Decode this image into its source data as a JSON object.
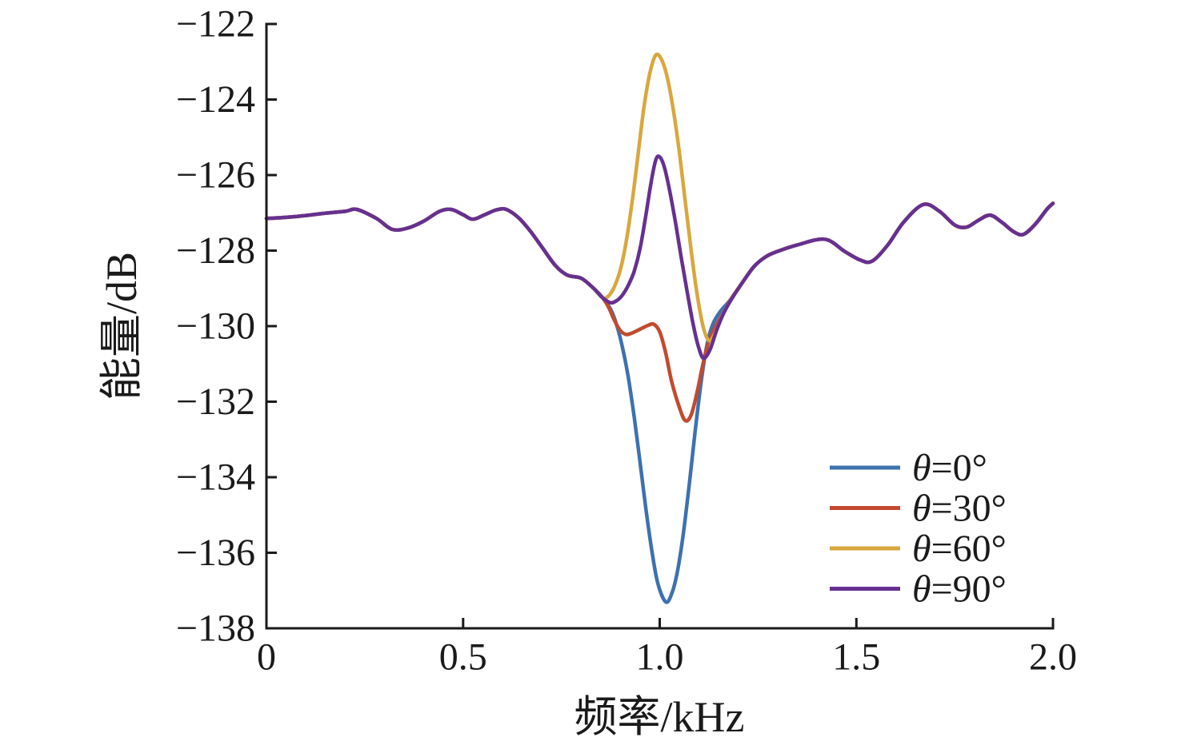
{
  "figure": {
    "background": "#ffffff",
    "axis_color": "#1a1a1a",
    "text_color": "#1a1a1a"
  },
  "chart_data": {
    "type": "line",
    "title": "",
    "xlabel": "频率/kHz",
    "ylabel": "能量/dB",
    "xlim": [
      0,
      2
    ],
    "ylim": [
      -138,
      -122
    ],
    "grid": false,
    "legend_position": "inside lower right",
    "xticks": [
      0,
      0.5,
      1.0,
      1.5,
      2.0
    ],
    "xtick_labels": [
      "0",
      "0.5",
      "1.0",
      "1.5",
      "2.0"
    ],
    "yticks": [
      -138,
      -136,
      -134,
      -132,
      -130,
      -128,
      -126,
      -124,
      -122
    ],
    "ytick_labels": [
      "−138",
      "−136",
      "−134",
      "−132",
      "−130",
      "−128",
      "−126",
      "−124",
      "−122"
    ],
    "series": [
      {
        "name": "θ=0°",
        "color": "#3D71B0",
        "points": [
          [
            0.0,
            -127.15
          ],
          [
            0.05,
            -127.12
          ],
          [
            0.1,
            -127.07
          ],
          [
            0.15,
            -127.01
          ],
          [
            0.2,
            -126.96
          ],
          [
            0.23,
            -126.91
          ],
          [
            0.28,
            -127.15
          ],
          [
            0.32,
            -127.44
          ],
          [
            0.36,
            -127.4
          ],
          [
            0.4,
            -127.22
          ],
          [
            0.44,
            -126.96
          ],
          [
            0.47,
            -126.91
          ],
          [
            0.5,
            -127.05
          ],
          [
            0.525,
            -127.17
          ],
          [
            0.555,
            -127.05
          ],
          [
            0.585,
            -126.92
          ],
          [
            0.61,
            -126.91
          ],
          [
            0.64,
            -127.12
          ],
          [
            0.67,
            -127.47
          ],
          [
            0.7,
            -127.9
          ],
          [
            0.735,
            -128.4
          ],
          [
            0.765,
            -128.65
          ],
          [
            0.8,
            -128.73
          ],
          [
            0.83,
            -128.98
          ],
          [
            0.855,
            -129.25
          ],
          [
            0.875,
            -129.55
          ],
          [
            0.89,
            -129.95
          ],
          [
            0.905,
            -130.55
          ],
          [
            0.92,
            -131.35
          ],
          [
            0.935,
            -132.4
          ],
          [
            0.95,
            -133.6
          ],
          [
            0.965,
            -134.85
          ],
          [
            0.98,
            -135.95
          ],
          [
            0.995,
            -136.8
          ],
          [
            1.015,
            -137.3
          ],
          [
            1.03,
            -137.1
          ],
          [
            1.045,
            -136.5
          ],
          [
            1.06,
            -135.5
          ],
          [
            1.075,
            -134.2
          ],
          [
            1.09,
            -132.8
          ],
          [
            1.105,
            -131.5
          ],
          [
            1.12,
            -130.5
          ],
          [
            1.135,
            -129.95
          ],
          [
            1.155,
            -129.6
          ],
          [
            1.18,
            -129.3
          ],
          [
            1.21,
            -128.85
          ],
          [
            1.24,
            -128.42
          ],
          [
            1.27,
            -128.16
          ],
          [
            1.3,
            -128.02
          ],
          [
            1.35,
            -127.85
          ],
          [
            1.42,
            -127.7
          ],
          [
            1.47,
            -128.02
          ],
          [
            1.51,
            -128.25
          ],
          [
            1.54,
            -128.28
          ],
          [
            1.58,
            -127.85
          ],
          [
            1.62,
            -127.25
          ],
          [
            1.67,
            -126.78
          ],
          [
            1.71,
            -126.95
          ],
          [
            1.75,
            -127.32
          ],
          [
            1.78,
            -127.38
          ],
          [
            1.81,
            -127.2
          ],
          [
            1.84,
            -127.06
          ],
          [
            1.87,
            -127.25
          ],
          [
            1.9,
            -127.5
          ],
          [
            1.925,
            -127.57
          ],
          [
            1.955,
            -127.3
          ],
          [
            1.985,
            -126.9
          ],
          [
            2.0,
            -126.75
          ]
        ]
      },
      {
        "name": "θ=30°",
        "color": "#C24A2E",
        "points": [
          [
            0.0,
            -127.15
          ],
          [
            0.05,
            -127.12
          ],
          [
            0.1,
            -127.07
          ],
          [
            0.15,
            -127.01
          ],
          [
            0.2,
            -126.96
          ],
          [
            0.23,
            -126.91
          ],
          [
            0.28,
            -127.15
          ],
          [
            0.32,
            -127.44
          ],
          [
            0.36,
            -127.4
          ],
          [
            0.4,
            -127.22
          ],
          [
            0.44,
            -126.96
          ],
          [
            0.47,
            -126.91
          ],
          [
            0.5,
            -127.05
          ],
          [
            0.525,
            -127.17
          ],
          [
            0.555,
            -127.05
          ],
          [
            0.585,
            -126.92
          ],
          [
            0.61,
            -126.91
          ],
          [
            0.64,
            -127.12
          ],
          [
            0.67,
            -127.47
          ],
          [
            0.7,
            -127.9
          ],
          [
            0.735,
            -128.4
          ],
          [
            0.765,
            -128.65
          ],
          [
            0.8,
            -128.73
          ],
          [
            0.83,
            -128.98
          ],
          [
            0.855,
            -129.25
          ],
          [
            0.87,
            -129.5
          ],
          [
            0.885,
            -129.85
          ],
          [
            0.9,
            -130.12
          ],
          [
            0.915,
            -130.22
          ],
          [
            0.93,
            -130.18
          ],
          [
            0.95,
            -130.08
          ],
          [
            0.97,
            -129.98
          ],
          [
            0.985,
            -129.95
          ],
          [
            1.0,
            -130.15
          ],
          [
            1.015,
            -130.7
          ],
          [
            1.03,
            -131.45
          ],
          [
            1.05,
            -132.15
          ],
          [
            1.065,
            -132.5
          ],
          [
            1.08,
            -132.35
          ],
          [
            1.095,
            -131.75
          ],
          [
            1.11,
            -131.0
          ],
          [
            1.125,
            -130.4
          ],
          [
            1.145,
            -129.95
          ],
          [
            1.165,
            -129.6
          ],
          [
            1.18,
            -129.3
          ],
          [
            1.21,
            -128.85
          ],
          [
            1.24,
            -128.42
          ],
          [
            1.27,
            -128.16
          ],
          [
            1.3,
            -128.02
          ],
          [
            1.35,
            -127.85
          ],
          [
            1.42,
            -127.7
          ],
          [
            1.47,
            -128.02
          ],
          [
            1.51,
            -128.25
          ],
          [
            1.54,
            -128.28
          ],
          [
            1.58,
            -127.85
          ],
          [
            1.62,
            -127.25
          ],
          [
            1.67,
            -126.78
          ],
          [
            1.71,
            -126.95
          ],
          [
            1.75,
            -127.32
          ],
          [
            1.78,
            -127.38
          ],
          [
            1.81,
            -127.2
          ],
          [
            1.84,
            -127.06
          ],
          [
            1.87,
            -127.25
          ],
          [
            1.9,
            -127.5
          ],
          [
            1.925,
            -127.57
          ],
          [
            1.955,
            -127.3
          ],
          [
            1.985,
            -126.9
          ],
          [
            2.0,
            -126.75
          ]
        ]
      },
      {
        "name": "θ=60°",
        "color": "#D9A73E",
        "points": [
          [
            0.0,
            -127.15
          ],
          [
            0.05,
            -127.12
          ],
          [
            0.1,
            -127.07
          ],
          [
            0.15,
            -127.01
          ],
          [
            0.2,
            -126.96
          ],
          [
            0.23,
            -126.91
          ],
          [
            0.28,
            -127.15
          ],
          [
            0.32,
            -127.44
          ],
          [
            0.36,
            -127.4
          ],
          [
            0.4,
            -127.22
          ],
          [
            0.44,
            -126.96
          ],
          [
            0.47,
            -126.91
          ],
          [
            0.5,
            -127.05
          ],
          [
            0.525,
            -127.17
          ],
          [
            0.555,
            -127.05
          ],
          [
            0.585,
            -126.92
          ],
          [
            0.61,
            -126.91
          ],
          [
            0.64,
            -127.12
          ],
          [
            0.67,
            -127.47
          ],
          [
            0.7,
            -127.9
          ],
          [
            0.735,
            -128.4
          ],
          [
            0.765,
            -128.65
          ],
          [
            0.8,
            -128.73
          ],
          [
            0.83,
            -128.98
          ],
          [
            0.855,
            -129.25
          ],
          [
            0.87,
            -129.2
          ],
          [
            0.885,
            -128.95
          ],
          [
            0.9,
            -128.5
          ],
          [
            0.915,
            -127.75
          ],
          [
            0.93,
            -126.7
          ],
          [
            0.945,
            -125.45
          ],
          [
            0.96,
            -124.2
          ],
          [
            0.975,
            -123.3
          ],
          [
            0.99,
            -122.82
          ],
          [
            1.005,
            -122.95
          ],
          [
            1.02,
            -123.45
          ],
          [
            1.035,
            -124.3
          ],
          [
            1.05,
            -125.4
          ],
          [
            1.065,
            -126.7
          ],
          [
            1.08,
            -128.0
          ],
          [
            1.095,
            -129.15
          ],
          [
            1.11,
            -130.0
          ],
          [
            1.125,
            -130.38
          ],
          [
            1.14,
            -130.2
          ],
          [
            1.16,
            -129.7
          ],
          [
            1.18,
            -129.32
          ],
          [
            1.21,
            -128.85
          ],
          [
            1.24,
            -128.42
          ],
          [
            1.27,
            -128.16
          ],
          [
            1.3,
            -128.02
          ],
          [
            1.35,
            -127.85
          ],
          [
            1.42,
            -127.7
          ],
          [
            1.47,
            -128.02
          ],
          [
            1.51,
            -128.25
          ],
          [
            1.54,
            -128.28
          ],
          [
            1.58,
            -127.85
          ],
          [
            1.62,
            -127.25
          ],
          [
            1.67,
            -126.78
          ],
          [
            1.71,
            -126.95
          ],
          [
            1.75,
            -127.32
          ],
          [
            1.78,
            -127.38
          ],
          [
            1.81,
            -127.2
          ],
          [
            1.84,
            -127.06
          ],
          [
            1.87,
            -127.25
          ],
          [
            1.9,
            -127.5
          ],
          [
            1.925,
            -127.57
          ],
          [
            1.955,
            -127.3
          ],
          [
            1.985,
            -126.9
          ],
          [
            2.0,
            -126.75
          ]
        ]
      },
      {
        "name": "θ=90°",
        "color": "#663090",
        "points": [
          [
            0.0,
            -127.15
          ],
          [
            0.05,
            -127.12
          ],
          [
            0.1,
            -127.07
          ],
          [
            0.15,
            -127.01
          ],
          [
            0.2,
            -126.96
          ],
          [
            0.23,
            -126.91
          ],
          [
            0.28,
            -127.15
          ],
          [
            0.32,
            -127.44
          ],
          [
            0.36,
            -127.4
          ],
          [
            0.4,
            -127.22
          ],
          [
            0.44,
            -126.96
          ],
          [
            0.47,
            -126.91
          ],
          [
            0.5,
            -127.05
          ],
          [
            0.525,
            -127.17
          ],
          [
            0.555,
            -127.05
          ],
          [
            0.585,
            -126.92
          ],
          [
            0.61,
            -126.91
          ],
          [
            0.64,
            -127.12
          ],
          [
            0.67,
            -127.47
          ],
          [
            0.7,
            -127.9
          ],
          [
            0.735,
            -128.4
          ],
          [
            0.765,
            -128.65
          ],
          [
            0.8,
            -128.73
          ],
          [
            0.83,
            -128.98
          ],
          [
            0.855,
            -129.25
          ],
          [
            0.875,
            -129.38
          ],
          [
            0.89,
            -129.33
          ],
          [
            0.905,
            -129.18
          ],
          [
            0.92,
            -128.92
          ],
          [
            0.935,
            -128.55
          ],
          [
            0.95,
            -127.95
          ],
          [
            0.965,
            -127.05
          ],
          [
            0.978,
            -126.2
          ],
          [
            0.99,
            -125.6
          ],
          [
            1.0,
            -125.52
          ],
          [
            1.012,
            -125.8
          ],
          [
            1.025,
            -126.4
          ],
          [
            1.04,
            -127.25
          ],
          [
            1.055,
            -128.2
          ],
          [
            1.07,
            -129.1
          ],
          [
            1.085,
            -129.95
          ],
          [
            1.1,
            -130.6
          ],
          [
            1.112,
            -130.85
          ],
          [
            1.128,
            -130.62
          ],
          [
            1.145,
            -130.1
          ],
          [
            1.163,
            -129.65
          ],
          [
            1.18,
            -129.33
          ],
          [
            1.21,
            -128.85
          ],
          [
            1.24,
            -128.42
          ],
          [
            1.27,
            -128.16
          ],
          [
            1.3,
            -128.02
          ],
          [
            1.35,
            -127.85
          ],
          [
            1.42,
            -127.7
          ],
          [
            1.47,
            -128.02
          ],
          [
            1.51,
            -128.25
          ],
          [
            1.54,
            -128.28
          ],
          [
            1.58,
            -127.85
          ],
          [
            1.62,
            -127.25
          ],
          [
            1.67,
            -126.78
          ],
          [
            1.71,
            -126.95
          ],
          [
            1.75,
            -127.32
          ],
          [
            1.78,
            -127.38
          ],
          [
            1.81,
            -127.2
          ],
          [
            1.84,
            -127.06
          ],
          [
            1.87,
            -127.25
          ],
          [
            1.9,
            -127.5
          ],
          [
            1.925,
            -127.57
          ],
          [
            1.955,
            -127.3
          ],
          [
            1.985,
            -126.9
          ],
          [
            2.0,
            -126.75
          ]
        ]
      }
    ]
  }
}
